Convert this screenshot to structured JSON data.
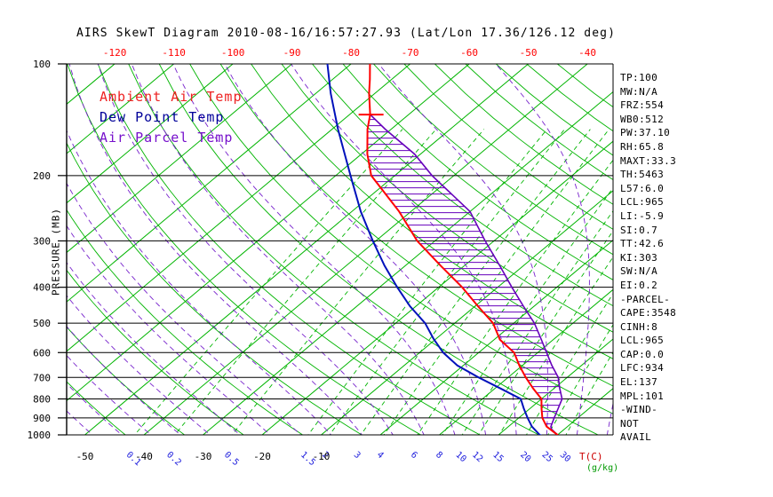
{
  "title": "AIRS SkewT Diagram 2010-08-16/16:57:27.93 (Lat/Lon 17.36/126.12 deg)",
  "legend": {
    "items": [
      {
        "label": "Ambient Air Temp",
        "color": "#ee2222"
      },
      {
        "label": "Dew Point Temp",
        "color": "#000099"
      },
      {
        "label": "Air Parcel Temp",
        "color": "#7711cc"
      }
    ]
  },
  "y_axis": {
    "label": "PRESSURE (MB)",
    "ticks": [
      100,
      200,
      300,
      400,
      500,
      600,
      700,
      800,
      900,
      1000
    ]
  },
  "top_axis": {
    "color": "#ff0000",
    "labels": [
      -120,
      -110,
      -100,
      -90,
      -80,
      -70,
      -60,
      -50,
      -40
    ]
  },
  "bottom_axis": {
    "temp_labels": [
      -50,
      -40,
      -30,
      -20,
      -10
    ],
    "temp_unit": "T(C)",
    "temp_unit_color": "#cc0000",
    "mix_unit": "(g/kg)",
    "mix_unit_color": "#009900"
  },
  "stats": {
    "lines": [
      "TP:100",
      "MW:N/A",
      "FRZ:554",
      "WB0:512",
      "PW:37.10",
      "RH:65.8",
      "MAXT:33.3",
      "TH:5463",
      "L57:6.0",
      "LCL:965",
      "LI:-5.9",
      "SI:0.7",
      "TT:42.6",
      "KI:303",
      "SW:N/A",
      "EI:0.2",
      "-PARCEL-",
      "CAPE:3548",
      "CINH:8",
      "LCL:965",
      "CAP:0.0",
      "LFC:934",
      "EL:137",
      "MPL:101",
      "-WIND-",
      "NOT",
      "AVAIL"
    ]
  },
  "chart_data": {
    "type": "line",
    "title": "AIRS SkewT Diagram 2010-08-16/16:57:27.93 (Lat/Lon 17.36/126.12 deg)",
    "xlabel": "T(C)",
    "ylabel": "PRESSURE (MB)",
    "y_scale": "log",
    "ylim": [
      1050,
      100
    ],
    "pressure_lines": [
      100,
      200,
      300,
      400,
      500,
      600,
      700,
      800,
      900,
      1000
    ],
    "isotherms": {
      "min_c": -170,
      "max_c": 40,
      "step_c": 10,
      "color": "#00b400",
      "style": "solid"
    },
    "dry_adiabats": {
      "min_theta_k": 180,
      "max_theta_k": 440,
      "step_k": 10,
      "color": "#00b400",
      "style": "solid"
    },
    "moist_adiabats": {
      "min_c": -130,
      "max_c": 45,
      "step_c": 5,
      "color": "#7722cc",
      "style": "dashed"
    },
    "mixing_ratio_lines": {
      "values_g_kg": [
        0.1,
        0.2,
        0.5,
        1.5,
        2,
        3,
        4,
        6,
        8,
        10,
        12,
        15,
        20,
        25,
        30
      ],
      "color": "#00b400",
      "style": "dashed",
      "label_color": "#2222dd"
    },
    "series": [
      {
        "name": "Ambient Air Temp",
        "color": "#ff0000",
        "points_p_mb_t_c": [
          [
            1010,
            30.5
          ],
          [
            1000,
            30
          ],
          [
            950,
            26.5
          ],
          [
            900,
            24
          ],
          [
            850,
            22
          ],
          [
            800,
            20
          ],
          [
            750,
            16.5
          ],
          [
            700,
            13
          ],
          [
            650,
            9.5
          ],
          [
            600,
            6
          ],
          [
            554,
            1
          ],
          [
            500,
            -3.5
          ],
          [
            450,
            -9.5
          ],
          [
            400,
            -16
          ],
          [
            350,
            -24
          ],
          [
            300,
            -33
          ],
          [
            250,
            -42
          ],
          [
            200,
            -54
          ],
          [
            175,
            -59
          ],
          [
            150,
            -64
          ],
          [
            137,
            -66.5
          ],
          [
            120,
            -71
          ],
          [
            110,
            -73.7
          ],
          [
            100,
            -76.8
          ]
        ]
      },
      {
        "name": "Dew Point Temp",
        "color": "#0011bb",
        "points_p_mb_t_c": [
          [
            1010,
            28
          ],
          [
            1000,
            27
          ],
          [
            950,
            24
          ],
          [
            900,
            21.5
          ],
          [
            850,
            19
          ],
          [
            800,
            16.5
          ],
          [
            750,
            11
          ],
          [
            700,
            5
          ],
          [
            650,
            -1
          ],
          [
            600,
            -6
          ],
          [
            550,
            -10.5
          ],
          [
            500,
            -15
          ],
          [
            450,
            -21
          ],
          [
            400,
            -27
          ],
          [
            350,
            -33.5
          ],
          [
            300,
            -40.5
          ],
          [
            250,
            -48.5
          ],
          [
            200,
            -57.5
          ],
          [
            150,
            -69
          ],
          [
            120,
            -77.5
          ],
          [
            100,
            -84
          ]
        ]
      },
      {
        "name": "Air Parcel Temp",
        "color": "#6600bb",
        "points_p_mb_t_c": [
          [
            1010,
            30.5
          ],
          [
            1000,
            30
          ],
          [
            965,
            27.8
          ],
          [
            950,
            27.2
          ],
          [
            900,
            26
          ],
          [
            850,
            24.8
          ],
          [
            800,
            23.5
          ],
          [
            750,
            21
          ],
          [
            700,
            18.5
          ],
          [
            650,
            15
          ],
          [
            600,
            11.5
          ],
          [
            550,
            7.7
          ],
          [
            500,
            3.5
          ],
          [
            450,
            -1.8
          ],
          [
            400,
            -7.6
          ],
          [
            350,
            -14
          ],
          [
            300,
            -21.5
          ],
          [
            250,
            -30
          ],
          [
            200,
            -43.7
          ],
          [
            175,
            -51
          ],
          [
            150,
            -61
          ],
          [
            137,
            -66.5
          ]
        ]
      }
    ],
    "cape_hatch": {
      "from_p_mb": 934,
      "to_p_mb": 137,
      "color": "#6600bb"
    },
    "el_marker": {
      "p_mb": 137,
      "t_c": -66.5,
      "color": "#ff0000"
    }
  }
}
